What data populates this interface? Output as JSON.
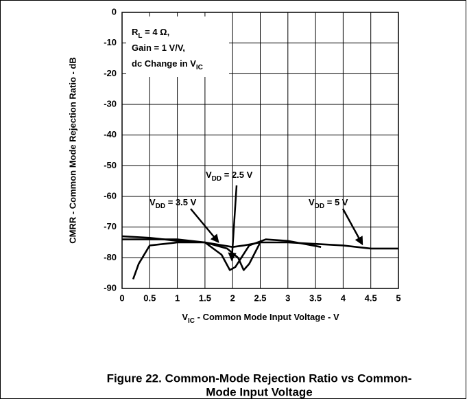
{
  "chart_data": {
    "type": "line",
    "ylabel": "CMRR - Common Mode Rejection Ratio - dB",
    "xlabel": {
      "main": "V",
      "sub": "IC",
      "rest": " - Common Mode Input Voltage - V"
    },
    "caption": [
      "Figure 22. Common-Mode Rejection Ratio vs Common-",
      "Mode Input Voltage"
    ],
    "conditions": [
      {
        "main": "R",
        "sub": "L",
        "rest": " = 4 Ω,"
      },
      {
        "main": "Gain = 1 V/V,"
      },
      {
        "main": "dc Change in V",
        "sub": "IC"
      }
    ],
    "xlim": [
      0,
      5
    ],
    "ylim": [
      -90,
      0
    ],
    "xticks": [
      0,
      0.5,
      1,
      1.5,
      2,
      2.5,
      3,
      3.5,
      4,
      4.5,
      5
    ],
    "yticks": [
      0,
      -10,
      -20,
      -30,
      -40,
      -50,
      -60,
      -70,
      -80,
      -90
    ],
    "grid": true,
    "series": [
      {
        "name": {
          "main": "V",
          "sub": "DD",
          "rest": " = 2.5 V"
        },
        "color": "#000000",
        "x": [
          0,
          0.5,
          1,
          1.5,
          1.9,
          2.1,
          2.2,
          2.3,
          2.5
        ],
        "values": [
          -74,
          -74,
          -74,
          -75,
          -77,
          -80,
          -84,
          -82,
          -75
        ]
      },
      {
        "name": {
          "main": "V",
          "sub": "DD",
          "rest": " = 3.5 V"
        },
        "color": "#000000",
        "x": [
          0.2,
          0.3,
          0.5,
          1,
          1.5,
          1.8,
          1.95,
          2.05,
          2.3,
          2.6,
          3,
          3.3,
          3.6
        ],
        "values": [
          -87,
          -82,
          -76,
          -75,
          -75,
          -79,
          -84,
          -83,
          -76,
          -74,
          -74.5,
          -75.5,
          -76.5
        ]
      },
      {
        "name": {
          "main": "V",
          "sub": "DD",
          "rest": " = 5 V"
        },
        "color": "#000000",
        "x": [
          0,
          0.5,
          1,
          1.5,
          2,
          2.2,
          2.5,
          3,
          3.5,
          4,
          4.5,
          5
        ],
        "values": [
          -73,
          -73.5,
          -74.5,
          -75,
          -76.5,
          -76,
          -75,
          -75,
          -75.5,
          -76,
          -77,
          -77
        ]
      }
    ]
  }
}
